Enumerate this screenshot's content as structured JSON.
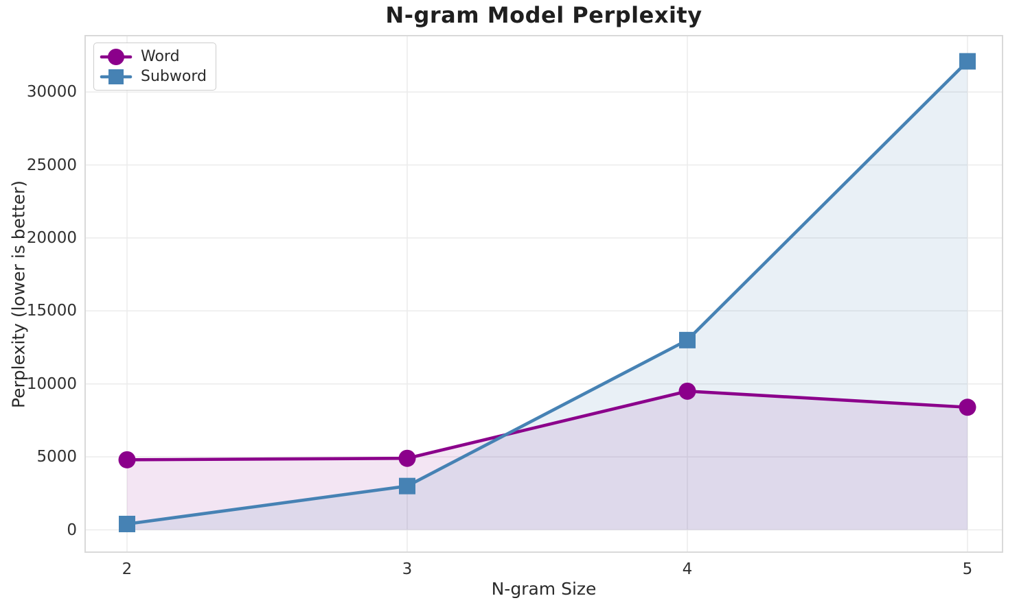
{
  "chart_data": {
    "type": "line",
    "title": "N-gram Model Perplexity",
    "xlabel": "N-gram Size",
    "ylabel": "Perplexity (lower is better)",
    "x": [
      2,
      3,
      4,
      5
    ],
    "xtick_labels": [
      "2",
      "3",
      "4",
      "5"
    ],
    "ytick_values": [
      0,
      5000,
      10000,
      15000,
      20000,
      25000,
      30000
    ],
    "ytick_labels": [
      "0",
      "5000",
      "10000",
      "15000",
      "20000",
      "25000",
      "30000"
    ],
    "ylim": [
      -1600,
      33900
    ],
    "grid": true,
    "legend_position": "upper-left",
    "area_fill_to_zero": true,
    "grid_color": "#ebebeb",
    "spine_color": "#d9d9d9",
    "series": [
      {
        "name": "Word",
        "marker": "circle",
        "color": "#8B008B",
        "fill_opacity": 0.1,
        "values": [
          4800,
          4900,
          9500,
          8400
        ]
      },
      {
        "name": "Subword",
        "marker": "square",
        "color": "#4682B4",
        "fill_opacity": 0.12,
        "values": [
          400,
          3000,
          13000,
          32100
        ]
      }
    ]
  }
}
